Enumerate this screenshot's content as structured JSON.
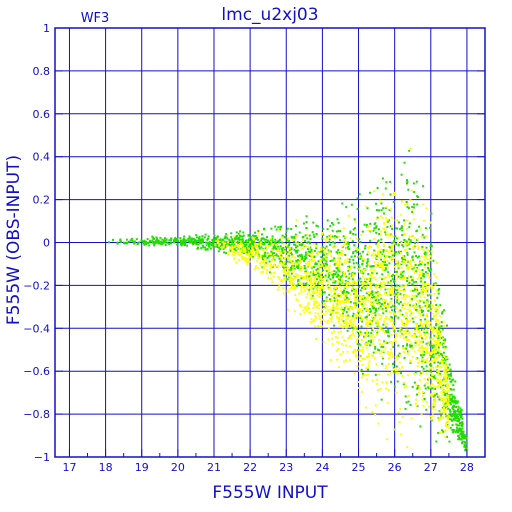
{
  "chart_data": {
    "type": "scatter",
    "title": "lmc_u2xj03",
    "panel_label": "WF3",
    "xlabel": "F555W INPUT",
    "ylabel": "F555W (OBS-INPUT)",
    "xlim": [
      16.6,
      28.5
    ],
    "ylim": [
      -1,
      1
    ],
    "x_ticks": [
      17,
      18,
      19,
      20,
      21,
      22,
      23,
      24,
      25,
      26,
      27,
      28
    ],
    "y_ticks": [
      1,
      0.8,
      0.6,
      0.4,
      0.2,
      0,
      -0.2,
      -0.4,
      -0.6,
      -0.8,
      -1
    ],
    "y_tick_labels": [
      "1",
      "0.8",
      "0.6",
      "0.4",
      "0.2",
      "0",
      "−0.2",
      "−0.4",
      "−0.6",
      "−0.8",
      "−1"
    ],
    "grid": true,
    "colors": {
      "axes": "#1010c8",
      "text": "#1010c8",
      "series_green": "#22dd00",
      "series_yellow": "#ffff00"
    },
    "series": [
      {
        "color": "#22dd00",
        "description": "green points",
        "envelope": [
          {
            "x": 18.0,
            "lo": -0.01,
            "hi": 0.02
          },
          {
            "x": 19.0,
            "lo": -0.02,
            "hi": 0.03
          },
          {
            "x": 20.0,
            "lo": -0.03,
            "hi": 0.04
          },
          {
            "x": 21.0,
            "lo": -0.05,
            "hi": 0.05
          },
          {
            "x": 22.0,
            "lo": -0.1,
            "hi": 0.08
          },
          {
            "x": 23.0,
            "lo": -0.22,
            "hi": 0.12
          },
          {
            "x": 24.0,
            "lo": -0.4,
            "hi": 0.18
          },
          {
            "x": 25.0,
            "lo": -0.65,
            "hi": 0.28
          },
          {
            "x": 26.0,
            "lo": -0.9,
            "hi": 0.5
          },
          {
            "x": 26.5,
            "lo": -1.0,
            "hi": 0.62
          },
          {
            "x": 27.0,
            "lo": -1.0,
            "hi": 0.3
          },
          {
            "x": 27.5,
            "lo": -1.0,
            "hi": -0.4
          },
          {
            "x": 28.0,
            "lo": -1.0,
            "hi": -0.9
          }
        ]
      },
      {
        "color": "#ffff00",
        "description": "yellow points",
        "envelope": [
          {
            "x": 21.0,
            "lo": -0.03,
            "hi": 0.02
          },
          {
            "x": 22.0,
            "lo": -0.15,
            "hi": 0.05
          },
          {
            "x": 23.0,
            "lo": -0.35,
            "hi": 0.1
          },
          {
            "x": 24.0,
            "lo": -0.6,
            "hi": 0.15
          },
          {
            "x": 25.0,
            "lo": -0.85,
            "hi": 0.25
          },
          {
            "x": 26.0,
            "lo": -1.0,
            "hi": 0.45
          },
          {
            "x": 26.5,
            "lo": -1.0,
            "hi": 0.55
          },
          {
            "x": 27.0,
            "lo": -1.0,
            "hi": 0.2
          },
          {
            "x": 27.5,
            "lo": -1.0,
            "hi": -0.5
          }
        ]
      }
    ]
  }
}
